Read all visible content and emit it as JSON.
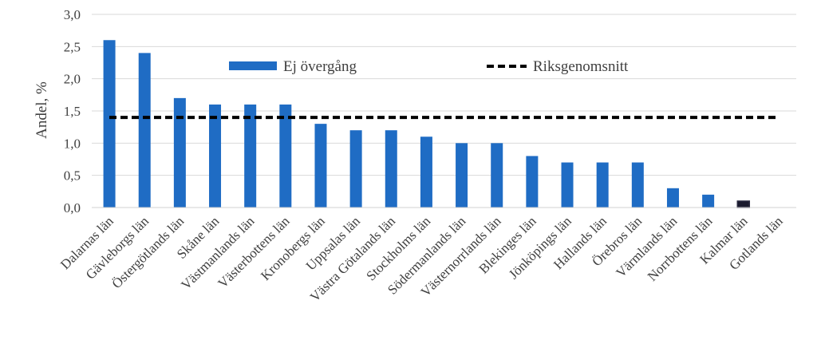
{
  "chart_data": {
    "type": "bar",
    "ylabel": "Andel, %",
    "xlabel": "",
    "ylim": [
      0,
      3.0
    ],
    "yticks": [
      "0,0",
      "0,5",
      "1,0",
      "1,5",
      "2,0",
      "2,5",
      "3,0"
    ],
    "ytick_values": [
      0,
      0.5,
      1.0,
      1.5,
      2.0,
      2.5,
      3.0
    ],
    "grid": true,
    "legend_position": "top-center",
    "categories": [
      "Dalarnas län",
      "Gävleborgs län",
      "Östergötlands län",
      "Skåne län",
      "Västmanlands län",
      "Västerbottens län",
      "Kronobergs län",
      "Uppsalas län",
      "Västra Götalands län",
      "Stockholms län",
      "Södermanlands län",
      "Västernorrlands län",
      "Blekinges län",
      "Jönköpings län",
      "Hallands län",
      "Örebros län",
      "Värmlands län",
      "Norrbottens län",
      "Kalmar län",
      "Gotlands län"
    ],
    "series": [
      {
        "name": "Ej övergång",
        "kind": "bar",
        "color": "#1f6cc4",
        "values": [
          2.6,
          2.4,
          1.7,
          1.6,
          1.6,
          1.6,
          1.3,
          1.2,
          1.2,
          1.1,
          1.0,
          1.0,
          0.8,
          0.7,
          0.7,
          0.7,
          0.3,
          0.2,
          0.1,
          0.0
        ]
      },
      {
        "name": "Riksgenomsnitt",
        "kind": "line",
        "style": "dashed",
        "color": "#000000",
        "value": 1.4
      }
    ],
    "highlight_bar": "Kalmar län",
    "highlight_color": "#1a1a2e"
  }
}
